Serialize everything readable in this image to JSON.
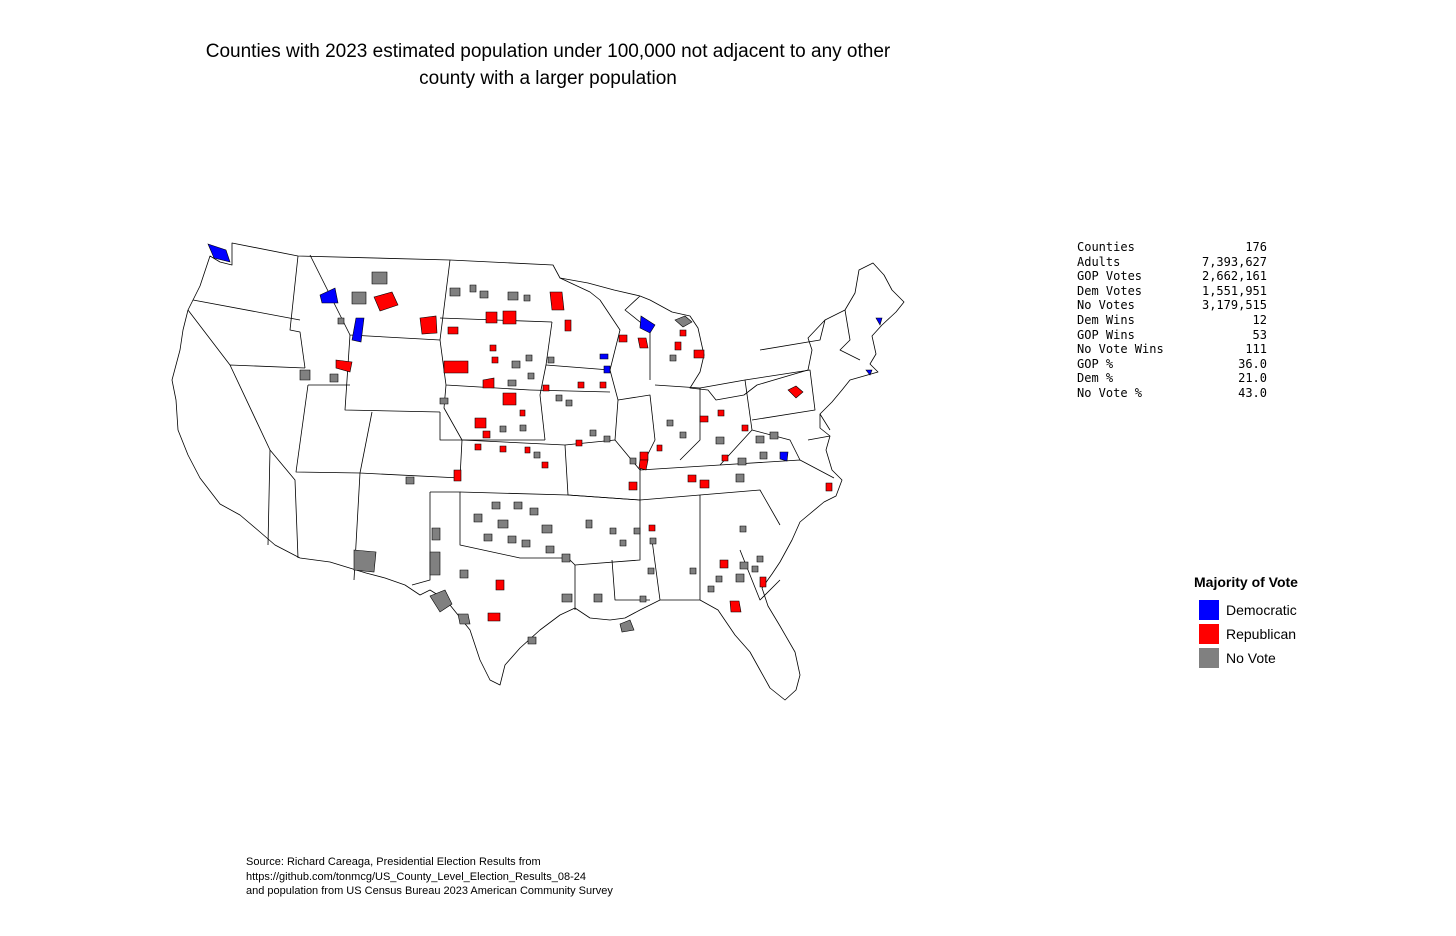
{
  "title": {
    "line1": "Counties with 2023 estimated population under 100,000 not adjacent to any other",
    "line2": "county with a larger population"
  },
  "stats": [
    {
      "label": "Counties",
      "value": "176"
    },
    {
      "label": "Adults",
      "value": "7,393,627"
    },
    {
      "label": "GOP Votes",
      "value": "2,662,161"
    },
    {
      "label": "Dem Votes",
      "value": "1,551,951"
    },
    {
      "label": "No Votes",
      "value": "3,179,515"
    },
    {
      "label": "Dem Wins",
      "value": "12"
    },
    {
      "label": "GOP Wins",
      "value": "53"
    },
    {
      "label": "No Vote Wins",
      "value": "111"
    },
    {
      "label": "GOP %",
      "value": "36.0"
    },
    {
      "label": "Dem %",
      "value": "21.0"
    },
    {
      "label": "No Vote %",
      "value": "43.0"
    }
  ],
  "legend": {
    "title": "Majority of Vote",
    "items": [
      {
        "label": "Democratic",
        "color": "#0000ff"
      },
      {
        "label": "Republican",
        "color": "#ff0000"
      },
      {
        "label": "No Vote",
        "color": "#808080"
      }
    ]
  },
  "source": {
    "line1": "Source: Richard Careaga, Presidential Election Results from",
    "line2": "https://github.com/tonmcg/US_County_Level_Election_Results_08-24",
    "line3": "and population from US Census Bureau 2023 American Community Survey"
  }
}
